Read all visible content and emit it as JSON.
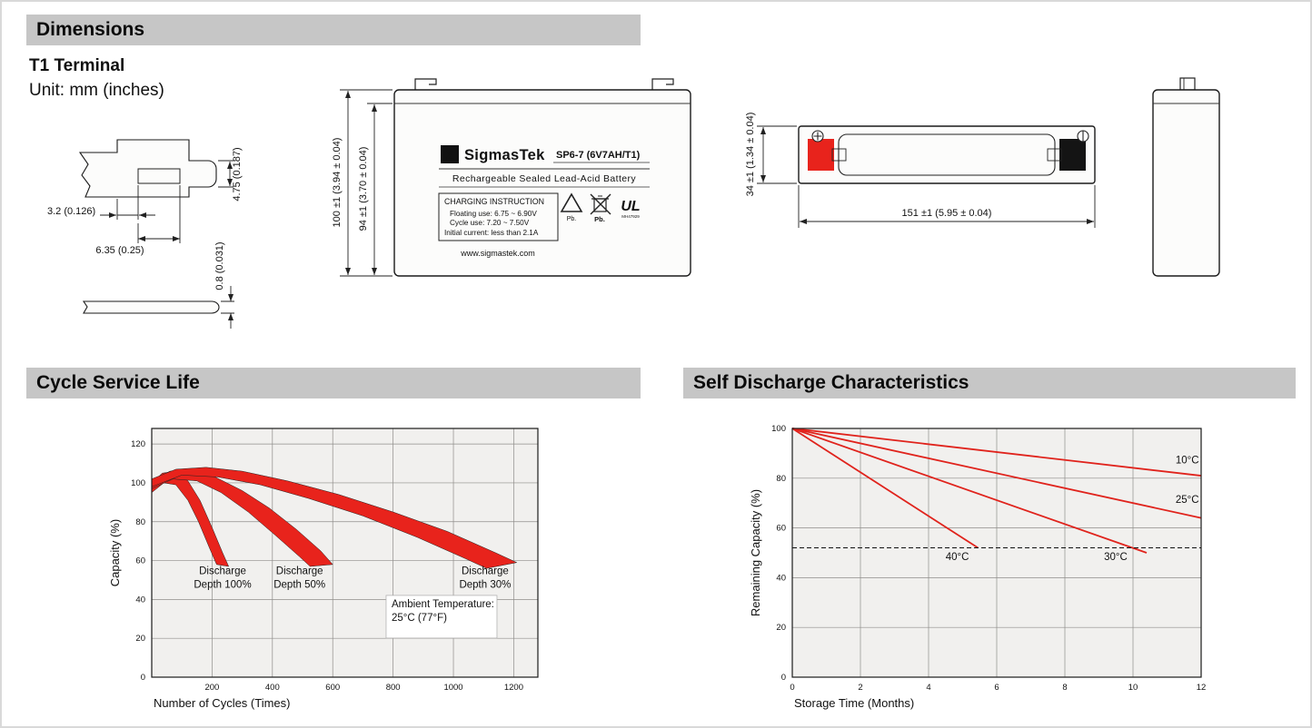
{
  "sections": {
    "dimensions": {
      "title": "Dimensions"
    },
    "cycle": {
      "title": "Cycle Service Life"
    },
    "self_discharge": {
      "title": "Self Discharge Characteristics"
    }
  },
  "drawings": {
    "subtitle": "T1 Terminal",
    "unit_note": "Unit: mm (inches)",
    "terminal": {
      "dim_height": "4.75 (0.187)",
      "dim_offset": "3.2 (0.126)",
      "dim_width": "6.35 (0.25)",
      "dim_thickness": "0.8 (0.031)"
    },
    "front_view": {
      "dim_total_height": "100 ±1 (3.94 ± 0.04)",
      "dim_case_height": "94 ±1 (3.70 ± 0.04)",
      "label": {
        "brand_sigma": "Σ",
        "brand": "SigmasTek",
        "model": "SP6-7 (6V7AH/T1)",
        "type_line": "Rechargeable Sealed Lead-Acid Battery",
        "charging_title": "CHARGING INSTRUCTION",
        "charging_lines": [
          "Floating use: 6.75 ~ 6.90V",
          "Cycle use: 7.20 ~ 7.50V",
          "Initial current: less than 2.1A"
        ],
        "recycle_pb": "Pb.",
        "bin_pb": "Pb.",
        "ul_text": "UL",
        "ul_number": "MH47929",
        "website": "www.sigmastek.com"
      }
    },
    "top_view": {
      "dim_width": "34 ±1 (1.34 ± 0.04)",
      "dim_length": "151 ±1 (5.95 ± 0.04)"
    }
  },
  "colors": {
    "accent_red": "#e8231c",
    "header_gray": "#c6c6c6",
    "plot_bg": "#f1f0ee"
  },
  "chart_data": [
    {
      "id": "cycle-life",
      "type": "area",
      "title": "Cycle Service Life",
      "xlabel": "Number of Cycles (Times)",
      "ylabel": "Capacity (%)",
      "xlim": [
        0,
        1280
      ],
      "ylim": [
        0,
        128
      ],
      "x_ticks": [
        200,
        400,
        600,
        800,
        1000,
        1200
      ],
      "y_ticks": [
        0,
        20,
        40,
        60,
        80,
        100,
        120
      ],
      "grid": true,
      "band_color": "#e8231c",
      "bands": [
        {
          "name": "Discharge Depth 100%",
          "upper": [
            [
              0,
              100
            ],
            [
              35,
              105
            ],
            [
              80,
              106
            ],
            [
              120,
              101
            ],
            [
              160,
              91
            ],
            [
              200,
              77
            ],
            [
              235,
              64
            ],
            [
              255,
              57
            ]
          ],
          "lower": [
            [
              0,
              95
            ],
            [
              40,
              100
            ],
            [
              80,
              99
            ],
            [
              120,
              91
            ],
            [
              155,
              80
            ],
            [
              190,
              67
            ],
            [
              215,
              58
            ]
          ]
        },
        {
          "name": "Discharge Depth 50%",
          "upper": [
            [
              0,
              101
            ],
            [
              60,
              106
            ],
            [
              130,
              107
            ],
            [
              210,
              103
            ],
            [
              300,
              96
            ],
            [
              390,
              87
            ],
            [
              480,
              76
            ],
            [
              560,
              65
            ],
            [
              600,
              58
            ]
          ],
          "lower": [
            [
              0,
              97
            ],
            [
              70,
              102
            ],
            [
              150,
              101
            ],
            [
              230,
              95
            ],
            [
              320,
              85
            ],
            [
              410,
              73
            ],
            [
              490,
              62
            ],
            [
              525,
              57
            ]
          ]
        },
        {
          "name": "Discharge Depth 30%",
          "upper": [
            [
              0,
              102
            ],
            [
              80,
              107
            ],
            [
              180,
              108
            ],
            [
              300,
              106
            ],
            [
              450,
              101
            ],
            [
              620,
              94
            ],
            [
              800,
              85
            ],
            [
              980,
              75
            ],
            [
              1140,
              64
            ],
            [
              1210,
              59
            ]
          ],
          "lower": [
            [
              0,
              98
            ],
            [
              100,
              104
            ],
            [
              220,
              103
            ],
            [
              360,
              99
            ],
            [
              520,
              92
            ],
            [
              700,
              83
            ],
            [
              880,
              72
            ],
            [
              1040,
              61
            ],
            [
              1110,
              56
            ]
          ]
        }
      ],
      "annotations": [
        {
          "lines": [
            "Discharge",
            "Depth 100%"
          ],
          "x": 235,
          "y": 53
        },
        {
          "lines": [
            "Discharge",
            "Depth 50%"
          ],
          "x": 490,
          "y": 53
        },
        {
          "lines": [
            "Discharge",
            "Depth 30%"
          ],
          "x": 1105,
          "y": 53
        },
        {
          "lines": [
            "Ambient Temperature:",
            "25°C (77°F)"
          ],
          "x": 795,
          "y": 36,
          "align": "left",
          "box": {
            "w": 122,
            "h": 47
          }
        }
      ]
    },
    {
      "id": "self-discharge",
      "type": "line",
      "title": "Self Discharge Characteristics",
      "xlabel": "Storage Time (Months)",
      "ylabel": "Remaining Capacity (%)",
      "xlim": [
        0,
        12
      ],
      "ylim": [
        0,
        100
      ],
      "x_ticks": [
        0,
        2,
        4,
        6,
        8,
        10,
        12
      ],
      "y_ticks": [
        0,
        20,
        40,
        60,
        80,
        100
      ],
      "grid": true,
      "line_color": "#e0231c",
      "series": [
        {
          "name": "10°C",
          "points": [
            [
              0,
              100
            ],
            [
              12,
              81
            ]
          ],
          "label": {
            "x": 11.25,
            "y": 86
          }
        },
        {
          "name": "25°C",
          "points": [
            [
              0,
              100
            ],
            [
              12,
              64
            ]
          ],
          "label": {
            "x": 11.25,
            "y": 70
          }
        },
        {
          "name": "30°C",
          "points": [
            [
              0,
              100
            ],
            [
              10.4,
              50
            ]
          ],
          "label": {
            "x": 9.15,
            "y": 47
          }
        },
        {
          "name": "40°C",
          "points": [
            [
              0,
              100
            ],
            [
              5.45,
              52
            ]
          ],
          "label": {
            "x": 4.5,
            "y": 47
          }
        }
      ],
      "dashed_lines": [
        {
          "y": 52
        }
      ]
    }
  ]
}
